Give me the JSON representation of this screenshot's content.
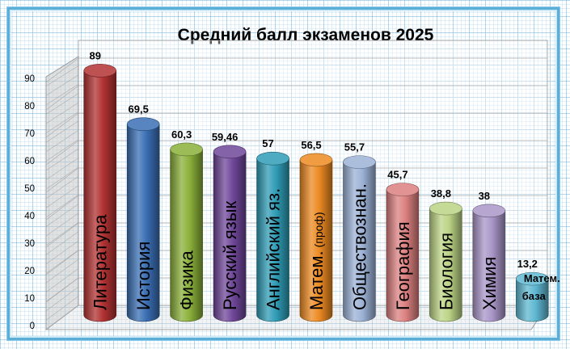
{
  "chart_data": {
    "type": "bar",
    "title": "Средний балл экзаменов 2025",
    "categories": [
      "Литература",
      "История",
      "Физика",
      "Русский язык",
      "Английский яз.",
      "Матем.",
      "Обществознан.",
      "География",
      "Биология",
      "Химия",
      "Матем."
    ],
    "category_suffix": [
      "",
      "",
      "",
      "",
      "",
      "(проф)",
      "",
      "",
      "",
      "",
      "база"
    ],
    "values": [
      89,
      69.5,
      60.3,
      59.46,
      57,
      56.5,
      55.7,
      45.7,
      38.8,
      38,
      13.2
    ],
    "value_labels": [
      "89",
      "69,5",
      "60,3",
      "59,46",
      "57",
      "56,5",
      "55,7",
      "45,7",
      "38,8",
      "38",
      "13,2"
    ],
    "y_ticks": [
      "0",
      "10",
      "20",
      "30",
      "40",
      "50",
      "60",
      "70",
      "80",
      "90"
    ],
    "ylim": [
      0,
      95
    ],
    "grid": true,
    "legend": "none",
    "colors": [
      "#b23232",
      "#3a6fb4",
      "#8bb03a",
      "#70479a",
      "#2f9cb6",
      "#ec8a22",
      "#9cb2d6",
      "#dc8080",
      "#bcd486",
      "#a996c8",
      "#5fb8d2"
    ]
  }
}
